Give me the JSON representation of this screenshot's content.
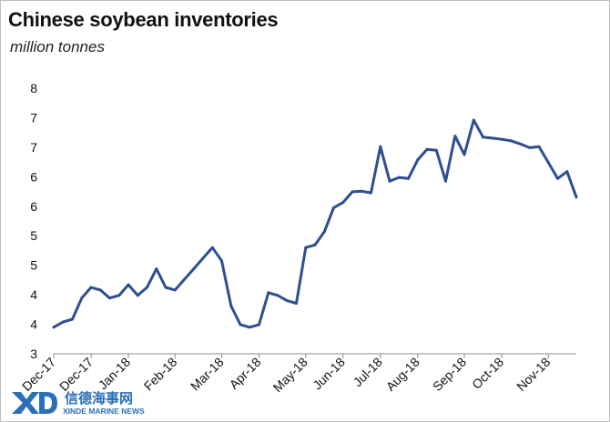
{
  "chart_data": {
    "type": "line",
    "title": "Chinese soybean inventories",
    "subtitle": "million tonnes",
    "y_ticks": [
      "8",
      "7",
      "7",
      "6",
      "6",
      "5",
      "5",
      "4",
      "4",
      "3"
    ],
    "ylim": [
      3,
      8
    ],
    "x_tick_labels": [
      "Dec-17",
      "Dec-17",
      "Jan-18",
      "Feb-18",
      "Mar-18",
      "Apr-18",
      "May-18",
      "Jun-18",
      "Jul-18",
      "Aug-18",
      "Sep-18",
      "Oct-18",
      "Nov-18"
    ],
    "x_tick_positions_index": [
      0,
      4,
      8,
      13,
      18,
      22,
      27,
      31,
      35,
      39,
      44,
      48,
      53
    ],
    "grid": false,
    "legend": "none",
    "series": [
      {
        "color": "#2f4f8f",
        "values": [
          3.5,
          3.6,
          3.65,
          4.05,
          4.25,
          4.2,
          4.05,
          4.1,
          4.3,
          4.1,
          4.25,
          4.6,
          4.25,
          4.2,
          4.4,
          4.6,
          4.8,
          5.0,
          4.75,
          3.9,
          3.55,
          3.5,
          3.55,
          4.15,
          4.1,
          4.0,
          3.95,
          5.0,
          5.05,
          5.3,
          5.75,
          5.85,
          6.05,
          6.06,
          6.03,
          6.9,
          6.25,
          6.32,
          6.3,
          6.65,
          6.85,
          6.83,
          6.25,
          7.1,
          6.75,
          7.4,
          7.08,
          7.06,
          7.04,
          7.01,
          6.95,
          6.88,
          6.9,
          6.6,
          6.3,
          6.43,
          5.95
        ]
      }
    ]
  },
  "watermark": {
    "brand_cn": "信德海事网",
    "brand_en": "XINDE MARINE NEWS"
  }
}
